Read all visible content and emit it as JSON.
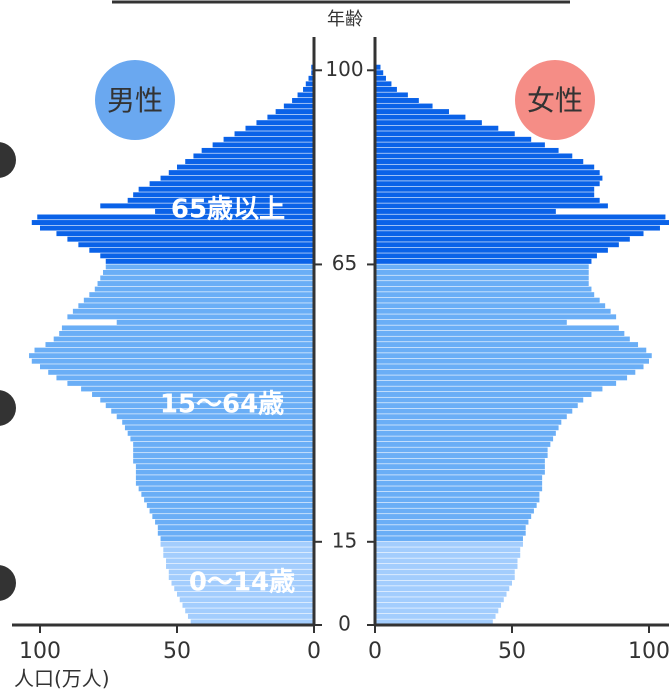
{
  "chart_data": {
    "type": "pyramid",
    "x_label": "年齢",
    "y_label": "人口(万人)",
    "x": [
      0,
      1,
      2,
      3,
      4,
      5,
      6,
      7,
      8,
      9,
      10,
      11,
      12,
      13,
      14,
      15,
      16,
      17,
      18,
      19,
      20,
      21,
      22,
      23,
      24,
      25,
      26,
      27,
      28,
      29,
      30,
      31,
      32,
      33,
      34,
      35,
      36,
      37,
      38,
      39,
      40,
      41,
      42,
      43,
      44,
      45,
      46,
      47,
      48,
      49,
      50,
      51,
      52,
      53,
      54,
      55,
      56,
      57,
      58,
      59,
      60,
      61,
      62,
      63,
      64,
      65,
      66,
      67,
      68,
      69,
      70,
      71,
      72,
      73,
      74,
      75,
      76,
      77,
      78,
      79,
      80,
      81,
      82,
      83,
      84,
      85,
      86,
      87,
      88,
      89,
      90,
      91,
      92,
      93,
      94,
      95,
      96,
      97,
      98,
      99,
      100
    ],
    "xlim": [
      0,
      106
    ],
    "xticks": [
      0,
      15,
      65,
      100
    ],
    "ylim": [
      0,
      110
    ],
    "yticks": [
      0,
      50,
      100
    ],
    "group_labels": [
      "0〜14歳",
      "15〜64歳",
      "65歳以上"
    ],
    "group_colors": [
      "#a3cdfd",
      "#6aaef6",
      "#0a62e8"
    ],
    "series": [
      {
        "name": "男性",
        "color": "#6aa8f0",
        "side": "left",
        "values": [
          45,
          46,
          47,
          48,
          49,
          50,
          51,
          52,
          53,
          53,
          54,
          54,
          55,
          55,
          56,
          56,
          57,
          57,
          58,
          59,
          60,
          61,
          62,
          63,
          64,
          65,
          65,
          65,
          65,
          66,
          66,
          66,
          66,
          67,
          68,
          69,
          70,
          72,
          74,
          76,
          78,
          81,
          85,
          90,
          94,
          97,
          100,
          103,
          104,
          102,
          98,
          95,
          93,
          92,
          72,
          90,
          88,
          86,
          84,
          82,
          80,
          79,
          78,
          77,
          76,
          76,
          78,
          82,
          86,
          90,
          94,
          100,
          103,
          101,
          58,
          78,
          68,
          66,
          64,
          60,
          56,
          53,
          50,
          47,
          44,
          41,
          37,
          33,
          29,
          25,
          21,
          17,
          14,
          11,
          8,
          6,
          4,
          3,
          2,
          1,
          1
        ]
      },
      {
        "name": "女性",
        "color": "#f58d86",
        "side": "right",
        "values": [
          43,
          44,
          45,
          46,
          47,
          48,
          49,
          50,
          51,
          51,
          52,
          52,
          53,
          53,
          54,
          54,
          55,
          55,
          56,
          57,
          58,
          59,
          60,
          60,
          61,
          61,
          61,
          62,
          62,
          62,
          63,
          63,
          64,
          65,
          66,
          67,
          68,
          70,
          72,
          74,
          76,
          79,
          83,
          88,
          92,
          95,
          98,
          100,
          101,
          99,
          96,
          93,
          91,
          89,
          70,
          88,
          86,
          84,
          82,
          80,
          79,
          78,
          78,
          78,
          78,
          79,
          81,
          85,
          89,
          93,
          98,
          104,
          108,
          106,
          66,
          85,
          82,
          80,
          80,
          82,
          83,
          82,
          80,
          76,
          72,
          67,
          62,
          57,
          51,
          45,
          39,
          33,
          27,
          21,
          16,
          12,
          8,
          6,
          4,
          3,
          2
        ]
      }
    ]
  }
}
